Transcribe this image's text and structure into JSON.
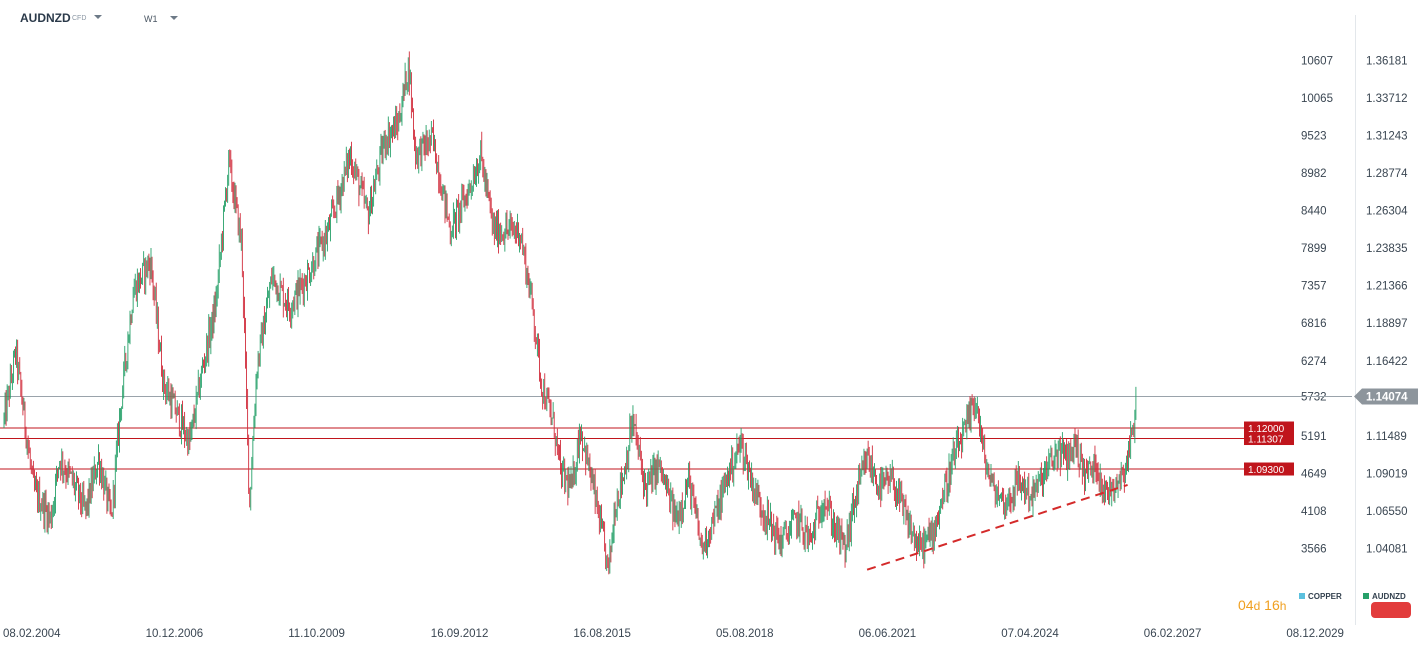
{
  "header": {
    "symbol": "AUDNZD",
    "symbol_type": "CFD",
    "timeframe": "W1"
  },
  "countdown": {
    "days": "04",
    "days_unit": "d",
    "hours": "16",
    "hours_unit": "h"
  },
  "legend": [
    {
      "name": "COPPER",
      "color": "#5bc0de"
    },
    {
      "name": "AUDNZD",
      "color": "#26a069"
    }
  ],
  "colors": {
    "up": "#26a069",
    "down": "#d12d3c",
    "level": "#c0151c",
    "trend": "#d42a2a"
  },
  "chart_data": {
    "type": "candlestick",
    "x_ticks": [
      "08.02.2004",
      "10.12.2006",
      "11.10.2009",
      "16.09.2012",
      "16.08.2015",
      "05.08.2018",
      "06.06.2021",
      "07.04.2024",
      "06.02.2027",
      "08.12.2029"
    ],
    "x_range": [
      "2004-02-08",
      "2029-12-08"
    ],
    "right_axis": {
      "series": "AUDNZD",
      "ticks": [
        "1.36181",
        "1.33712",
        "1.31243",
        "1.28774",
        "1.26304",
        "1.23835",
        "1.21366",
        "1.18897",
        "1.16422",
        "1.14074",
        "1.11489",
        "1.09019",
        "1.06550",
        "1.04081"
      ],
      "current_price": "1.14074"
    },
    "left_axis": {
      "series": "COPPER",
      "ticks": [
        "10607",
        "10065",
        "9523",
        "8982",
        "8440",
        "7899",
        "7357",
        "6816",
        "6274",
        "5732",
        "5191",
        "4649",
        "4108",
        "3566"
      ]
    },
    "horizontal_levels": [
      "1.12000",
      "1.11307",
      "1.09300"
    ],
    "trendline": {
      "style": "dashed",
      "from": [
        "2020-09-01",
        1.0267
      ],
      "to": [
        "2025-09-01",
        1.0825
      ]
    },
    "path_points": [
      [
        "2004-02-08",
        1.125
      ],
      [
        "2004-05-01",
        1.17
      ],
      [
        "2004-09-01",
        1.08
      ],
      [
        "2005-01-01",
        1.06
      ],
      [
        "2005-03-01",
        1.1
      ],
      [
        "2005-06-01",
        1.085
      ],
      [
        "2005-09-01",
        1.065
      ],
      [
        "2005-12-01",
        1.1
      ],
      [
        "2006-03-01",
        1.06
      ],
      [
        "2006-05-01",
        1.13
      ],
      [
        "2006-08-01",
        1.21
      ],
      [
        "2006-12-01",
        1.23
      ],
      [
        "2007-03-01",
        1.15
      ],
      [
        "2007-06-01",
        1.13
      ],
      [
        "2007-09-01",
        1.11
      ],
      [
        "2007-12-01",
        1.16
      ],
      [
        "2008-03-01",
        1.2
      ],
      [
        "2008-06-01",
        1.295
      ],
      [
        "2008-09-01",
        1.24
      ],
      [
        "2008-10-25",
        1.07
      ],
      [
        "2008-12-15",
        1.16
      ],
      [
        "2009-04-01",
        1.22
      ],
      [
        "2009-08-01",
        1.2
      ],
      [
        "2009-12-01",
        1.22
      ],
      [
        "2010-05-01",
        1.25
      ],
      [
        "2010-10-01",
        1.3
      ],
      [
        "2011-02-01",
        1.26
      ],
      [
        "2011-06-01",
        1.31
      ],
      [
        "2011-09-01",
        1.32
      ],
      [
        "2011-11-15",
        1.36
      ],
      [
        "2012-01-01",
        1.3
      ],
      [
        "2012-05-01",
        1.31
      ],
      [
        "2012-09-01",
        1.25
      ],
      [
        "2013-01-01",
        1.275
      ],
      [
        "2013-04-01",
        1.3
      ],
      [
        "2013-07-01",
        1.25
      ],
      [
        "2014-01-01",
        1.25
      ],
      [
        "2014-04-01",
        1.2
      ],
      [
        "2014-06-01",
        1.15
      ],
      [
        "2014-09-01",
        1.12
      ],
      [
        "2014-10-15",
        1.09
      ],
      [
        "2015-01-01",
        1.08
      ],
      [
        "2015-03-01",
        1.12
      ],
      [
        "2015-06-01",
        1.08
      ],
      [
        "2015-08-01",
        1.05
      ],
      [
        "2015-09-15",
        1.025
      ],
      [
        "2015-11-01",
        1.07
      ],
      [
        "2016-01-01",
        1.09
      ],
      [
        "2016-03-01",
        1.125
      ],
      [
        "2016-06-01",
        1.08
      ],
      [
        "2016-09-01",
        1.095
      ],
      [
        "2017-01-01",
        1.06
      ],
      [
        "2017-04-01",
        1.085
      ],
      [
        "2017-07-01",
        1.04
      ],
      [
        "2017-11-01",
        1.07
      ],
      [
        "2018-01-01",
        1.09
      ],
      [
        "2018-04-01",
        1.11
      ],
      [
        "2018-07-01",
        1.08
      ],
      [
        "2018-10-01",
        1.06
      ],
      [
        "2019-01-01",
        1.045
      ],
      [
        "2019-05-01",
        1.06
      ],
      [
        "2019-08-01",
        1.045
      ],
      [
        "2019-11-01",
        1.075
      ],
      [
        "2020-01-15",
        1.055
      ],
      [
        "2020-04-01",
        1.04
      ],
      [
        "2020-06-01",
        1.07
      ],
      [
        "2020-09-01",
        1.1
      ],
      [
        "2020-12-01",
        1.08
      ],
      [
        "2021-03-01",
        1.085
      ],
      [
        "2021-06-01",
        1.06
      ],
      [
        "2021-09-01",
        1.04
      ],
      [
        "2021-12-01",
        1.05
      ],
      [
        "2022-03-01",
        1.08
      ],
      [
        "2022-05-01",
        1.1
      ],
      [
        "2022-08-01",
        1.12
      ],
      [
        "2022-10-01",
        1.14
      ],
      [
        "2022-12-01",
        1.1
      ],
      [
        "2023-02-01",
        1.08
      ],
      [
        "2023-05-01",
        1.07
      ],
      [
        "2023-08-01",
        1.085
      ],
      [
        "2023-11-01",
        1.075
      ],
      [
        "2024-02-01",
        1.09
      ],
      [
        "2024-05-01",
        1.105
      ],
      [
        "2024-07-01",
        1.1
      ],
      [
        "2024-09-01",
        1.11
      ],
      [
        "2024-11-01",
        1.09
      ],
      [
        "2025-02-01",
        1.095
      ],
      [
        "2025-04-01",
        1.075
      ],
      [
        "2025-06-01",
        1.085
      ],
      [
        "2025-08-01",
        1.09
      ],
      [
        "2025-10-01",
        1.115
      ],
      [
        "2025-11-01",
        1.138
      ]
    ]
  }
}
